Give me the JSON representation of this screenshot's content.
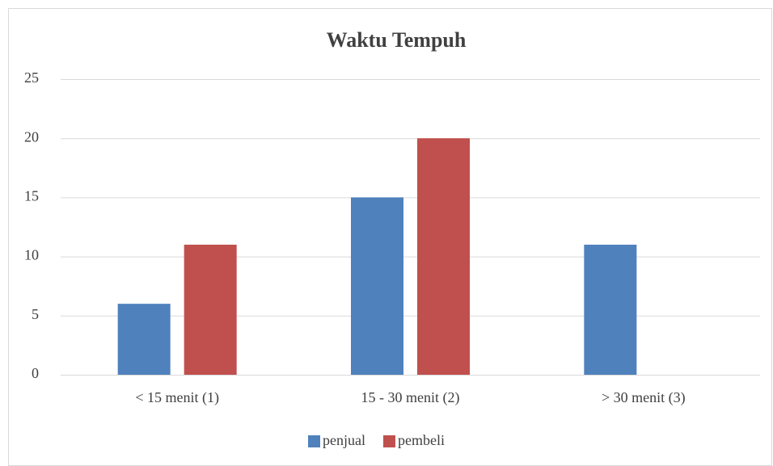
{
  "chart_data": {
    "type": "bar",
    "title": "Waktu Tempuh",
    "categories": [
      "< 15 menit (1)",
      "15 - 30 menit (2)",
      "> 30 menit (3)"
    ],
    "series": [
      {
        "name": "penjual",
        "color": "#4f81bd",
        "values": [
          6,
          15,
          11
        ]
      },
      {
        "name": "pembeli",
        "color": "#c0504d",
        "values": [
          11,
          20,
          0
        ]
      }
    ],
    "ylim": [
      0,
      25
    ],
    "yticks": [
      0,
      5,
      10,
      15,
      20,
      25
    ],
    "grid": true,
    "legend": "bottom"
  }
}
